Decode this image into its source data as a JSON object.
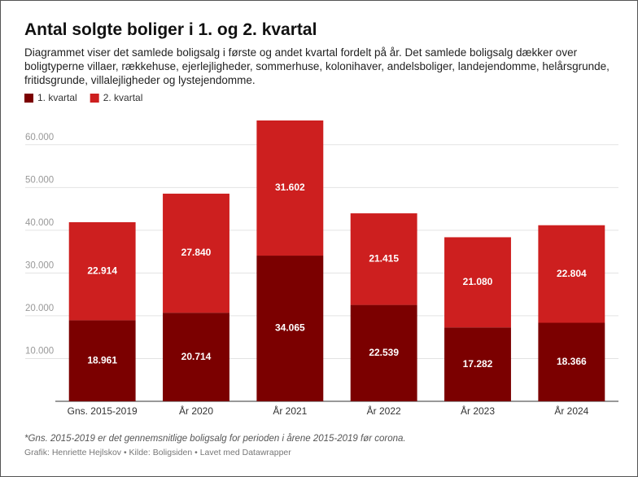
{
  "chart_data": {
    "type": "stacked_bar",
    "title": "Antal solgte boliger i 1. og 2. kvartal",
    "subtitle": "Diagrammet viser det samlede boligsalg i første og andet kvartal fordelt på år. Det samlede boligsalg dækker over boligtyperne villaer, rækkehuse, ejerlejligheder, sommerhuse, kolonihaver, andelsboliger, landejendomme, helårsgrunde, fritidsgrunde, villalejligheder og lystejendomme.",
    "categories": [
      "Gns. 2015-2019",
      "År 2020",
      "År 2021",
      "År 2022",
      "År 2023",
      "År 2024"
    ],
    "series": [
      {
        "name": "1. kvartal",
        "color": "#7b0000",
        "values": [
          18961,
          20714,
          34065,
          22539,
          17282,
          18366
        ],
        "value_labels": [
          "18.961",
          "20.714",
          "34.065",
          "22.539",
          "17.282",
          "18.366"
        ]
      },
      {
        "name": "2. kvartal",
        "color": "#cd1f1f",
        "values": [
          22914,
          27840,
          31602,
          21415,
          21080,
          22804
        ],
        "value_labels": [
          "22.914",
          "27.840",
          "31.602",
          "21.415",
          "21.080",
          "22.804"
        ]
      }
    ],
    "ylim": [
      0,
      67000
    ],
    "yticks": [
      {
        "value": 10000,
        "label": "10.000"
      },
      {
        "value": 20000,
        "label": "20.000"
      },
      {
        "value": 30000,
        "label": "30.000"
      },
      {
        "value": 40000,
        "label": "40.000"
      },
      {
        "value": 50000,
        "label": "50.000"
      },
      {
        "value": 60000,
        "label": "60.000"
      }
    ],
    "grid": true,
    "footnote": "*Gns. 2015-2019 er det gennemsnitlige boligsalg for perioden i årene 2015-2019 før corona.",
    "source": "Grafik: Henriette Hejlskov • Kilde: Boligsiden • Lavet med Datawrapper"
  }
}
